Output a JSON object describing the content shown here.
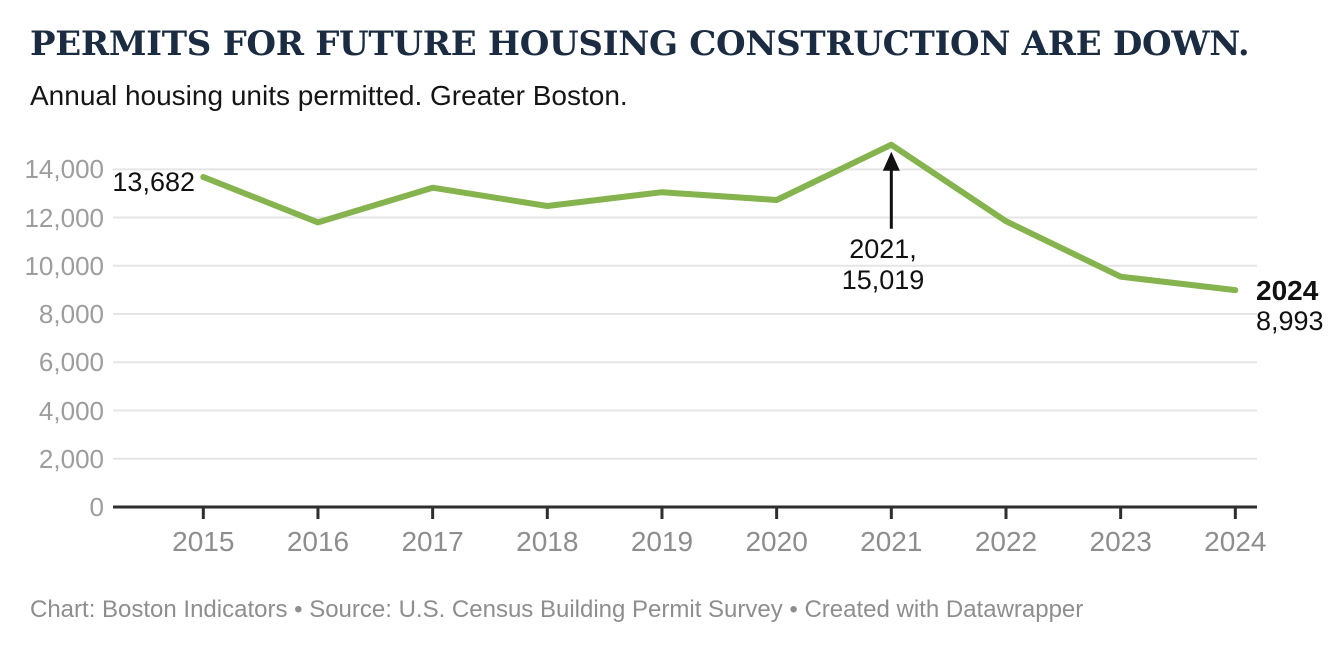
{
  "header": {
    "title": "PERMITS FOR FUTURE HOUSING CONSTRUCTION ARE DOWN.",
    "subtitle": "Annual housing units permitted. Greater Boston."
  },
  "chart_data": {
    "type": "line",
    "title": "PERMITS FOR FUTURE HOUSING CONSTRUCTION ARE DOWN.",
    "subtitle": "Annual housing units permitted. Greater Boston.",
    "x": [
      2015,
      2016,
      2017,
      2018,
      2019,
      2020,
      2021,
      2022,
      2023,
      2024
    ],
    "xtick_labels": [
      "2015",
      "2016",
      "2017",
      "2018",
      "2019",
      "2020",
      "2021",
      "2022",
      "2023",
      "2024"
    ],
    "series": [
      {
        "name": "Annual housing units permitted",
        "values": [
          13682,
          11800,
          13240,
          12480,
          13050,
          12730,
          15019,
          11850,
          9550,
          8993
        ]
      }
    ],
    "labeled_points": [
      {
        "x": 2015,
        "value": 13682
      },
      {
        "x": 2021,
        "value": 15019
      },
      {
        "x": 2024,
        "value": 8993
      }
    ],
    "xlabel": "",
    "ylabel": "",
    "ylim": [
      0,
      15500
    ],
    "yticks": [
      0,
      2000,
      4000,
      6000,
      8000,
      10000,
      12000,
      14000
    ],
    "ytick_labels": [
      "0",
      "2,000",
      "4,000",
      "6,000",
      "8,000",
      "10,000",
      "12,000",
      "14,000"
    ],
    "grid": "horizontal",
    "legend": "none",
    "annotations": {
      "first_point_label": "13,682",
      "peak_line1": "2021,",
      "peak_line2": "15,019",
      "end_year_label": "2024",
      "end_value_label": "8,993"
    }
  },
  "footer": {
    "credit": "Chart: Boston Indicators • Source: U.S. Census Building Permit Survey • Created with Datawrapper"
  },
  "colors": {
    "line": "#85b44f",
    "title": "#1b2c42",
    "axis": "#2e2e2e",
    "grid": "#e5e5e5",
    "xtick_label": "#8d8d8d",
    "ytick_label": "#9d9d9d",
    "annotation": "#111111",
    "footer": "#8e8e8e"
  }
}
